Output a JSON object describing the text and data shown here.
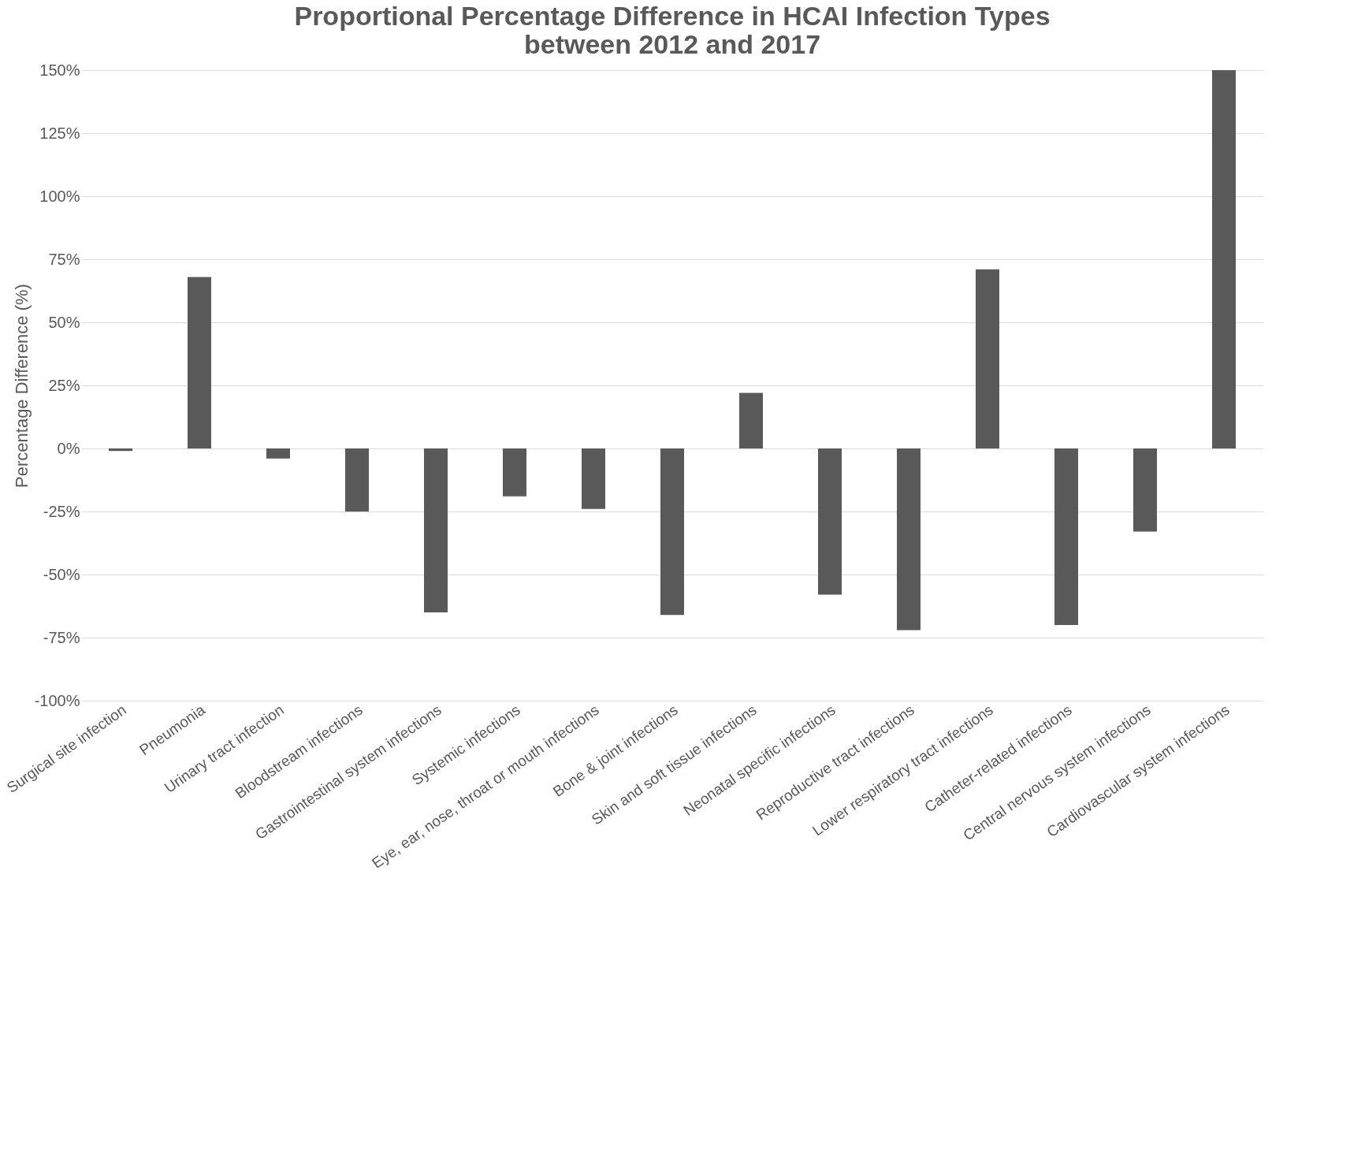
{
  "chart_data": {
    "type": "bar",
    "title": [
      "Proportional Percentage Difference in HCAI Infection Types",
      "between 2012 and 2017"
    ],
    "ylabel": "Percentage Difference (%)",
    "categories": [
      "Surgical site infection",
      "Pneumonia",
      "Urinary tract infection",
      "Bloodstream infections",
      "Gastrointestinal system infections",
      "Systemic infections",
      "Eye, ear, nose, throat or mouth infections",
      "Bone & joint infections",
      "Skin and soft tissue infections",
      "Neonatal specific infections",
      "Reproductive tract infections",
      "Lower respiratory tract infections",
      "Catheter-related infections",
      "Central nervous system infections",
      "Cardiovascular system infections"
    ],
    "values": [
      -1,
      68,
      -4,
      -25,
      -65,
      -19,
      -24,
      -66,
      22,
      -58,
      -72,
      71,
      -70,
      -33,
      150
    ],
    "color": "#595959",
    "ylim": [
      -100,
      150
    ],
    "yticks": [
      {
        "value": -100,
        "label": "-100%"
      },
      {
        "value": -75,
        "label": "-75%"
      },
      {
        "value": -50,
        "label": "-50%"
      },
      {
        "value": -25,
        "label": "-25%"
      },
      {
        "value": 0,
        "label": "0%"
      },
      {
        "value": 25,
        "label": "25%"
      },
      {
        "value": 50,
        "label": "50%"
      },
      {
        "value": 75,
        "label": "75%"
      },
      {
        "value": 100,
        "label": "100%"
      },
      {
        "value": 125,
        "label": "125%"
      },
      {
        "value": 150,
        "label": "150%"
      }
    ],
    "grid": "y"
  }
}
